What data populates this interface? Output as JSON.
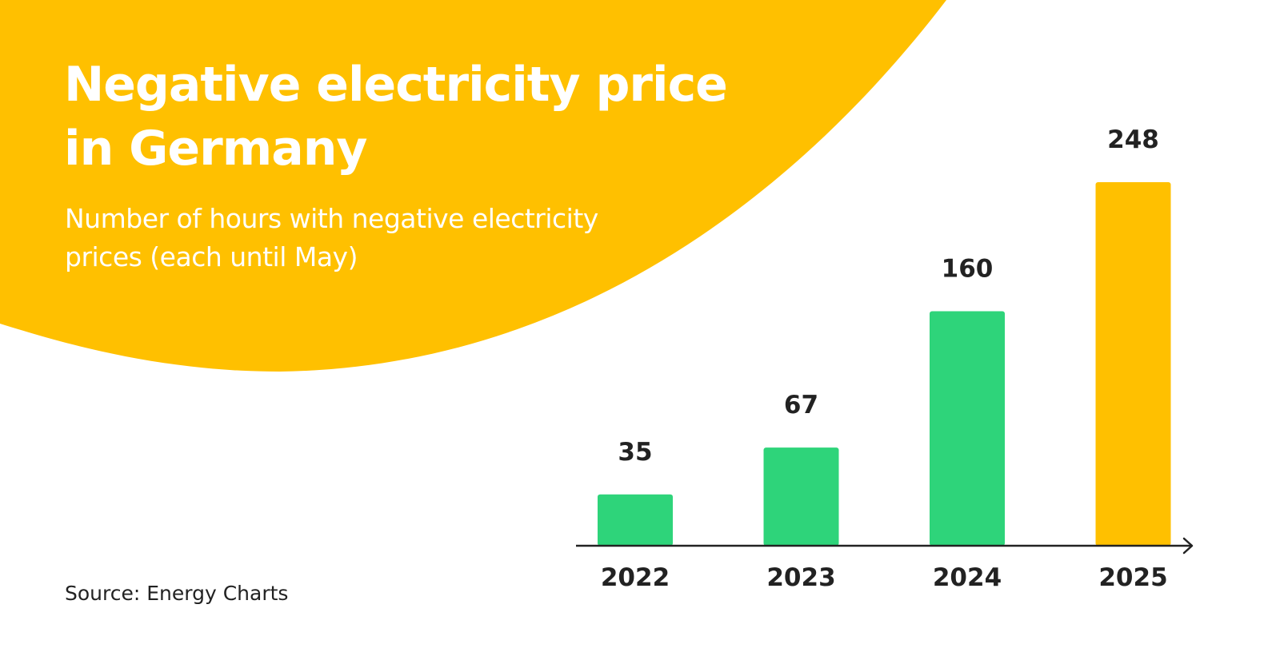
{
  "header": {
    "title_line1": "Negative electricity price",
    "title_line2": "in Germany",
    "subtitle_line1": "Number of hours with negative electricity",
    "subtitle_line2": "prices (each until May)"
  },
  "footer": {
    "source": "Source: Energy Charts"
  },
  "colors": {
    "background_shape": "#FFC000",
    "bar_default": "#2ED47A",
    "bar_highlight": "#FFC000",
    "axis": "#222222",
    "text_light": "#FFFFFF",
    "text_dark": "#222222"
  },
  "chart_data": {
    "type": "bar",
    "title": "Negative electricity price in Germany",
    "subtitle": "Number of hours with negative electricity prices (each until May)",
    "categories": [
      "2022",
      "2023",
      "2024",
      "2025"
    ],
    "values": [
      35,
      67,
      160,
      248
    ],
    "highlight_index": 3,
    "xlabel": "",
    "ylabel": "",
    "ylim": [
      0,
      248
    ],
    "grid": false,
    "data_labels": true
  }
}
